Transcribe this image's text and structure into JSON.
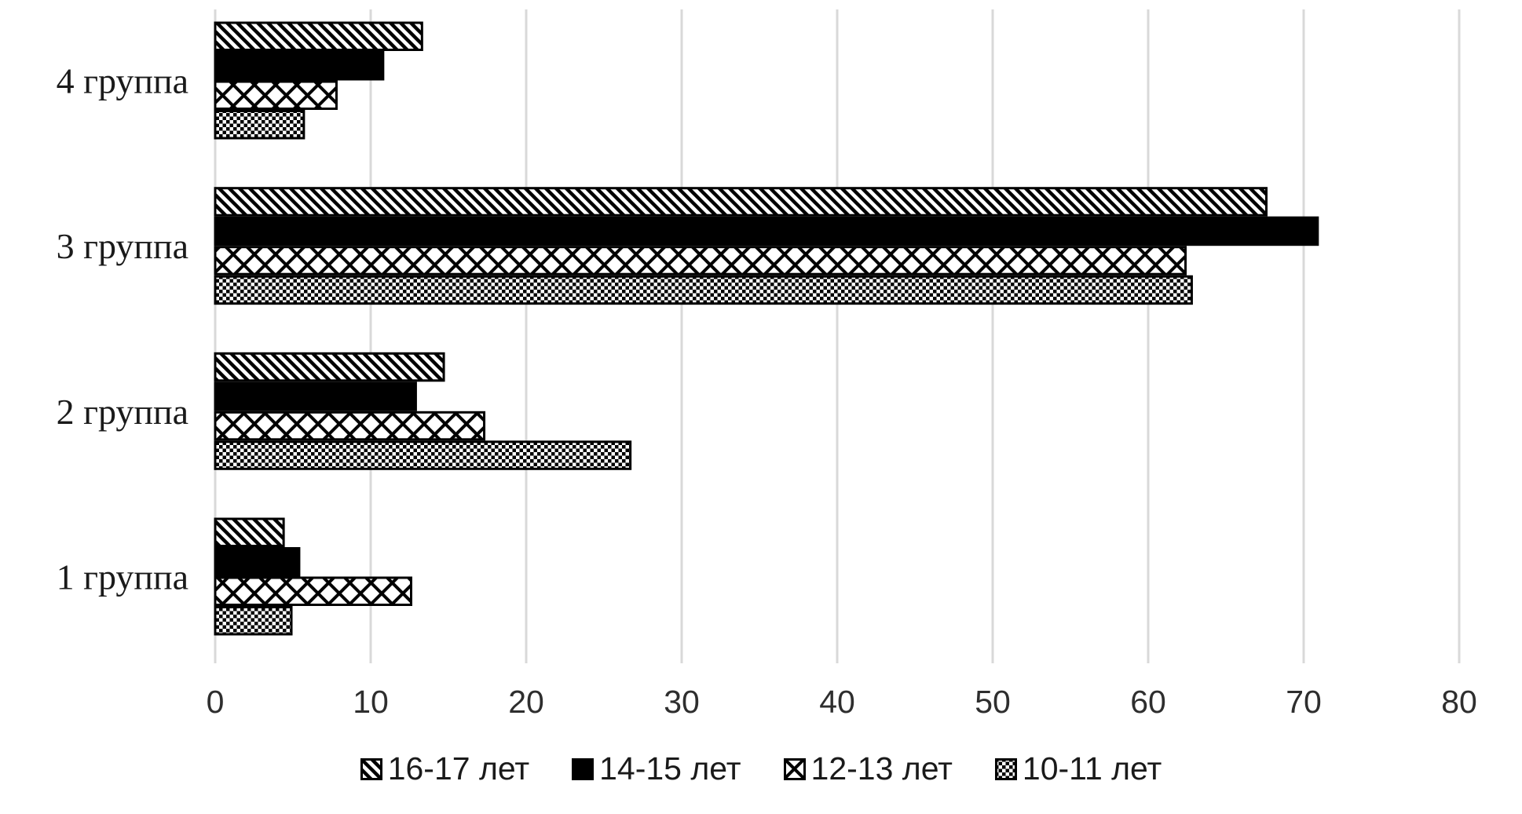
{
  "chart_data": {
    "type": "bar",
    "orientation": "horizontal",
    "title": "",
    "categories": [
      "4 группа",
      "3 группа",
      "2 группа",
      "1 группа"
    ],
    "series": [
      {
        "name": "16-17 лет",
        "pattern": "diagonal",
        "values": [
          13.3,
          67.6,
          14.7,
          4.4
        ]
      },
      {
        "name": "14-15 лет",
        "pattern": "solid",
        "values": [
          10.8,
          70.9,
          12.9,
          5.4
        ]
      },
      {
        "name": "12-13 лет",
        "pattern": "crosshatch",
        "values": [
          7.8,
          62.4,
          17.3,
          12.6
        ]
      },
      {
        "name": "10-11 лет",
        "pattern": "checker",
        "values": [
          5.7,
          62.8,
          26.7,
          4.9
        ]
      }
    ],
    "xlabel": "",
    "ylabel": "",
    "xlim": [
      0,
      80
    ],
    "xticks": [
      0,
      10,
      20,
      30,
      40,
      50,
      60,
      70,
      80
    ],
    "grid": true,
    "legend_position": "bottom",
    "colors": {
      "gridline": "#d9d9d9",
      "bar_outline": "#000000",
      "solid_fill": "#000000",
      "text": "#1a1a1a",
      "tick_text": "#2e2e2e",
      "background": "#ffffff"
    }
  }
}
